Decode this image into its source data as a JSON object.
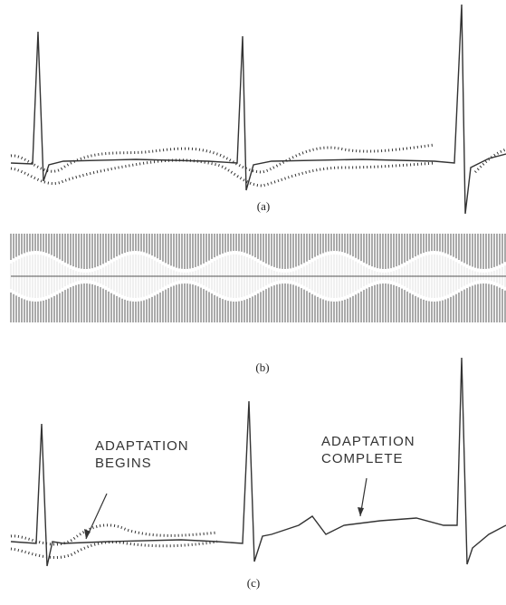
{
  "panels": [
    {
      "label": "(a)"
    },
    {
      "label": "(b)"
    },
    {
      "label": "(c)",
      "annotations": [
        [
          "ADAPTATION",
          "BEGINS"
        ],
        [
          "ADAPTATION",
          "COMPLETE"
        ]
      ]
    }
  ]
}
